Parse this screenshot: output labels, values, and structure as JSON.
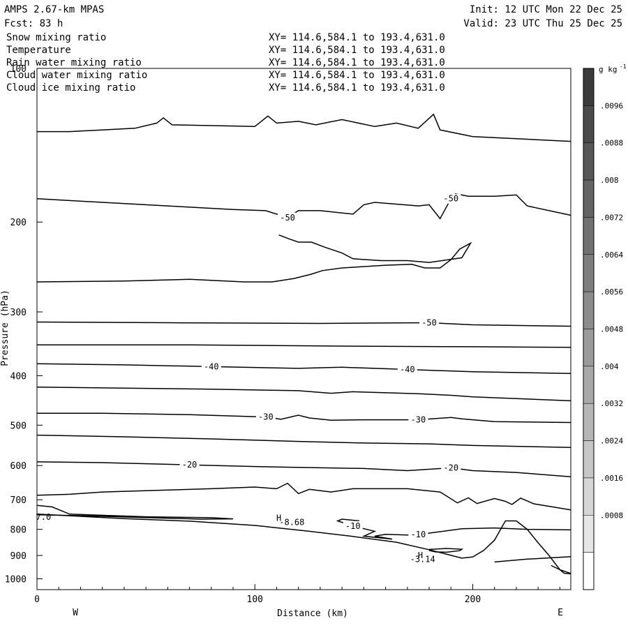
{
  "header": {
    "model": "AMPS 2.67-km MPAS",
    "forecast": "Fcst:   83 h",
    "init": "Init: 12 UTC Mon 22 Dec 25",
    "valid": "Valid: 23 UTC Thu 25 Dec 25"
  },
  "fields": [
    {
      "name": "Snow mixing ratio",
      "xy": "XY= 114.6,584.1 to 193.4,631.0",
      "color": "#000000"
    },
    {
      "name": "Temperature",
      "xy": "XY= 114.6,584.1 to 193.4,631.0",
      "color": "#000000"
    },
    {
      "name": "Rain water mixing ratio",
      "xy": "XY= 114.6,584.1 to 193.4,631.0",
      "color": "#e00000"
    },
    {
      "name": "Cloud water mixing ratio",
      "xy": "XY= 114.6,584.1 to 193.4,631.0",
      "color": "#0000cc"
    },
    {
      "name": "Cloud ice mixing ratio",
      "xy": "XY= 114.6,584.1 to 193.4,631.0",
      "color": "#000000"
    }
  ],
  "chart_data": {
    "type": "line",
    "xlabel": "Distance (km)",
    "ylabel": "Pressure (hPa)",
    "xlim": [
      0,
      245
    ],
    "ylim": [
      100,
      1050
    ],
    "yscale": "log",
    "y_inverted": true,
    "x_ticks": [
      "0",
      "100",
      "200"
    ],
    "x_tick_values": [
      0,
      100,
      200
    ],
    "y_ticks": [
      "100",
      "200",
      "300",
      "400",
      "500",
      "600",
      "700",
      "800",
      "900",
      "1000"
    ],
    "y_tick_values": [
      100,
      200,
      300,
      400,
      500,
      600,
      700,
      800,
      900,
      1000
    ],
    "left_end_label": "W",
    "right_end_label": "E",
    "grid": false,
    "colorbar": {
      "unit": "g kg",
      "unit_exp": "-1",
      "labels": [
        ".0096",
        ".0088",
        ".008",
        ".0072",
        ".0064",
        ".0056",
        ".0048",
        ".004",
        ".0032",
        ".0024",
        ".0016",
        ".0008"
      ],
      "values": [
        0.0096,
        0.0088,
        0.008,
        0.0072,
        0.0064,
        0.0056,
        0.0048,
        0.004,
        0.0032,
        0.0024,
        0.0016,
        0.0008
      ],
      "colors": [
        "#3b3b3b",
        "#4a4a4a",
        "#575757",
        "#646464",
        "#717171",
        "#7e7e7e",
        "#8c8c8c",
        "#9a9a9a",
        "#a8a8a8",
        "#b6b6b6",
        "#c6c6c6",
        "#d6d6d6",
        "#e6e6e6",
        "#ffffff"
      ]
    },
    "contours": [
      {
        "label": "",
        "points": [
          [
            0,
            133
          ],
          [
            15,
            133
          ],
          [
            45,
            131
          ],
          [
            55,
            128
          ],
          [
            58,
            125
          ],
          [
            62,
            129
          ],
          [
            100,
            130
          ],
          [
            106,
            124
          ],
          [
            110,
            128
          ],
          [
            120,
            127
          ],
          [
            128,
            129
          ],
          [
            140,
            126
          ],
          [
            155,
            130
          ],
          [
            165,
            128
          ],
          [
            175,
            131
          ],
          [
            182,
            123
          ],
          [
            185,
            132
          ],
          [
            200,
            136
          ],
          [
            245,
            139
          ]
        ]
      },
      {
        "label": "-50",
        "points": [
          [
            0,
            180
          ],
          [
            30,
            183
          ],
          [
            60,
            186
          ],
          [
            90,
            189
          ],
          [
            105,
            190
          ],
          [
            115,
            196
          ],
          [
            120,
            190
          ],
          [
            130,
            190
          ],
          [
            145,
            193
          ],
          [
            150,
            185
          ],
          [
            155,
            183
          ],
          [
            175,
            186
          ],
          [
            180,
            185
          ],
          [
            185,
            197
          ],
          [
            190,
            180
          ],
          [
            192,
            176
          ],
          [
            198,
            178
          ],
          [
            210,
            178
          ],
          [
            220,
            177
          ],
          [
            225,
            186
          ],
          [
            245,
            194
          ]
        ]
      },
      {
        "label": "",
        "points": [
          [
            0,
            262
          ],
          [
            40,
            261
          ],
          [
            70,
            259
          ],
          [
            95,
            262
          ],
          [
            108,
            262
          ],
          [
            118,
            258
          ],
          [
            126,
            253
          ],
          [
            131,
            249
          ],
          [
            140,
            246
          ],
          [
            160,
            243
          ],
          [
            172,
            242
          ],
          [
            178,
            246
          ],
          [
            185,
            246
          ],
          [
            190,
            237
          ],
          [
            194,
            226
          ],
          [
            199,
            220
          ],
          [
            195,
            235
          ],
          [
            180,
            240
          ],
          [
            170,
            238
          ],
          [
            158,
            238
          ],
          [
            145,
            236
          ],
          [
            140,
            230
          ],
          [
            132,
            224
          ],
          [
            126,
            219
          ],
          [
            120,
            219
          ],
          [
            116,
            216
          ],
          [
            111,
            212
          ]
        ]
      },
      {
        "label": "-50",
        "points": [
          [
            0,
            314
          ],
          [
            60,
            315
          ],
          [
            130,
            316
          ],
          [
            180,
            315
          ],
          [
            200,
            318
          ],
          [
            245,
            320
          ]
        ]
      },
      {
        "label": "",
        "points": [
          [
            0,
            348
          ],
          [
            70,
            348
          ],
          [
            140,
            350
          ],
          [
            200,
            351
          ],
          [
            245,
            352
          ]
        ]
      },
      {
        "label": "-40",
        "points": [
          [
            0,
            379
          ],
          [
            40,
            381
          ],
          [
            80,
            384
          ],
          [
            120,
            387
          ],
          [
            140,
            385
          ],
          [
            170,
            389
          ],
          [
            200,
            393
          ],
          [
            245,
            396
          ]
        ]
      },
      {
        "label": "",
        "points": [
          [
            0,
            421
          ],
          [
            40,
            423
          ],
          [
            80,
            425
          ],
          [
            120,
            428
          ],
          [
            135,
            433
          ],
          [
            145,
            430
          ],
          [
            175,
            434
          ],
          [
            190,
            437
          ],
          [
            200,
            440
          ],
          [
            245,
            448
          ]
        ]
      },
      {
        "label": "-30",
        "points": [
          [
            0,
            474
          ],
          [
            30,
            474
          ],
          [
            70,
            477
          ],
          [
            105,
            482
          ],
          [
            112,
            487
          ],
          [
            120,
            478
          ],
          [
            125,
            484
          ],
          [
            135,
            489
          ],
          [
            150,
            488
          ],
          [
            175,
            488
          ],
          [
            190,
            483
          ],
          [
            195,
            486
          ],
          [
            210,
            492
          ],
          [
            245,
            494
          ]
        ]
      },
      {
        "label": "",
        "points": [
          [
            0,
            523
          ],
          [
            40,
            527
          ],
          [
            80,
            532
          ],
          [
            120,
            538
          ],
          [
            150,
            542
          ],
          [
            180,
            544
          ],
          [
            200,
            548
          ],
          [
            245,
            553
          ]
        ]
      },
      {
        "label": "-20",
        "points": [
          [
            0,
            590
          ],
          [
            30,
            592
          ],
          [
            70,
            598
          ],
          [
            110,
            604
          ],
          [
            130,
            606
          ],
          [
            150,
            608
          ],
          [
            170,
            614
          ],
          [
            190,
            606
          ],
          [
            200,
            614
          ],
          [
            220,
            619
          ],
          [
            245,
            631
          ]
        ]
      },
      {
        "label": "",
        "points": [
          [
            0,
            686
          ],
          [
            15,
            683
          ],
          [
            30,
            676
          ],
          [
            60,
            670
          ],
          [
            80,
            666
          ],
          [
            100,
            661
          ],
          [
            110,
            666
          ],
          [
            115,
            650
          ],
          [
            120,
            681
          ],
          [
            125,
            668
          ],
          [
            135,
            676
          ],
          [
            145,
            666
          ],
          [
            170,
            666
          ],
          [
            185,
            676
          ],
          [
            193,
            710
          ],
          [
            198,
            694
          ],
          [
            202,
            712
          ],
          [
            210,
            696
          ],
          [
            215,
            705
          ],
          [
            218,
            715
          ],
          [
            222,
            695
          ],
          [
            228,
            713
          ],
          [
            245,
            733
          ]
        ]
      },
      {
        "label": "",
        "points": [
          [
            0,
            718
          ],
          [
            7,
            723
          ],
          [
            15,
            747
          ],
          [
            50,
            756
          ],
          [
            80,
            759
          ],
          [
            90,
            763
          ],
          [
            75,
            764
          ],
          [
            20,
            752
          ],
          [
            0,
            749
          ]
        ]
      },
      {
        "label": "-10",
        "points": [
          [
            148,
            770
          ],
          [
            140,
            764
          ],
          [
            138,
            770
          ],
          [
            145,
            788
          ],
          [
            155,
            807
          ],
          [
            150,
            825
          ],
          [
            163,
            836
          ],
          [
            155,
            825
          ],
          [
            160,
            818
          ],
          [
            170,
            821
          ],
          [
            175,
            819
          ],
          [
            195,
            798
          ],
          [
            210,
            795
          ],
          [
            225,
            800
          ],
          [
            245,
            802
          ]
        ]
      },
      {
        "label": "",
        "points": [
          [
            0,
            747
          ],
          [
            40,
            762
          ],
          [
            70,
            771
          ],
          [
            100,
            786
          ],
          [
            125,
            807
          ],
          [
            145,
            826
          ],
          [
            165,
            848
          ],
          [
            180,
            877
          ],
          [
            195,
            911
          ],
          [
            200,
            906
          ],
          [
            205,
            880
          ],
          [
            210,
            840
          ],
          [
            215,
            770
          ],
          [
            220,
            770
          ],
          [
            225,
            800
          ],
          [
            230,
            850
          ],
          [
            235,
            900
          ],
          [
            240,
            960
          ],
          [
            245,
            976
          ]
        ]
      },
      {
        "label": "",
        "points": [
          [
            180,
            876
          ],
          [
            188,
            872
          ],
          [
            195,
            875
          ],
          [
            194,
            881
          ],
          [
            188,
            887
          ],
          [
            183,
            886
          ],
          [
            180,
            880
          ]
        ]
      },
      {
        "label": "",
        "points": [
          [
            210,
            927
          ],
          [
            225,
            915
          ],
          [
            245,
            905
          ]
        ]
      },
      {
        "label": "",
        "points": [
          [
            236,
            942
          ],
          [
            240,
            960
          ],
          [
            242,
            975
          ],
          [
            245,
            978
          ]
        ]
      }
    ],
    "annotations": [
      {
        "text": "H",
        "x": 111,
        "y": 760
      },
      {
        "text": "-8.68",
        "x": 117,
        "y": 775
      },
      {
        "text": "H",
        "x": 176,
        "y": 900
      },
      {
        "text": "-3.14",
        "x": 177,
        "y": 916
      },
      {
        "text": "7.0",
        "x": 3,
        "y": 757
      }
    ]
  }
}
